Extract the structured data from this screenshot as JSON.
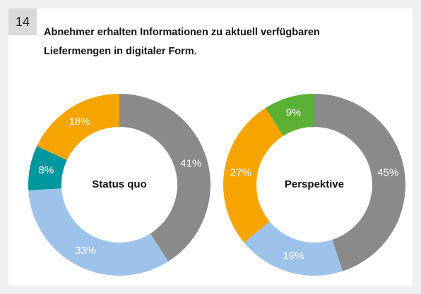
{
  "badge": "14",
  "title": [
    "Abnehmer erhalten Informationen zu aktuell verfügbaren",
    "Liefermengen in digitaler Form."
  ],
  "chart_data": [
    {
      "type": "pie",
      "center_label": "Status quo",
      "values": [
        41,
        33,
        8,
        18
      ],
      "value_labels": [
        "41%",
        "33%",
        "8%",
        "18%"
      ],
      "colors": [
        "#8a8a8a",
        "#9dc3ea",
        "#00979f",
        "#f6a500"
      ]
    },
    {
      "type": "pie",
      "center_label": "Perspektive",
      "values": [
        45,
        19,
        27,
        9
      ],
      "value_labels": [
        "45%",
        "19%",
        "27%",
        "9%"
      ],
      "colors": [
        "#8a8a8a",
        "#9dc3ea",
        "#f6a500",
        "#5bb133"
      ]
    }
  ]
}
